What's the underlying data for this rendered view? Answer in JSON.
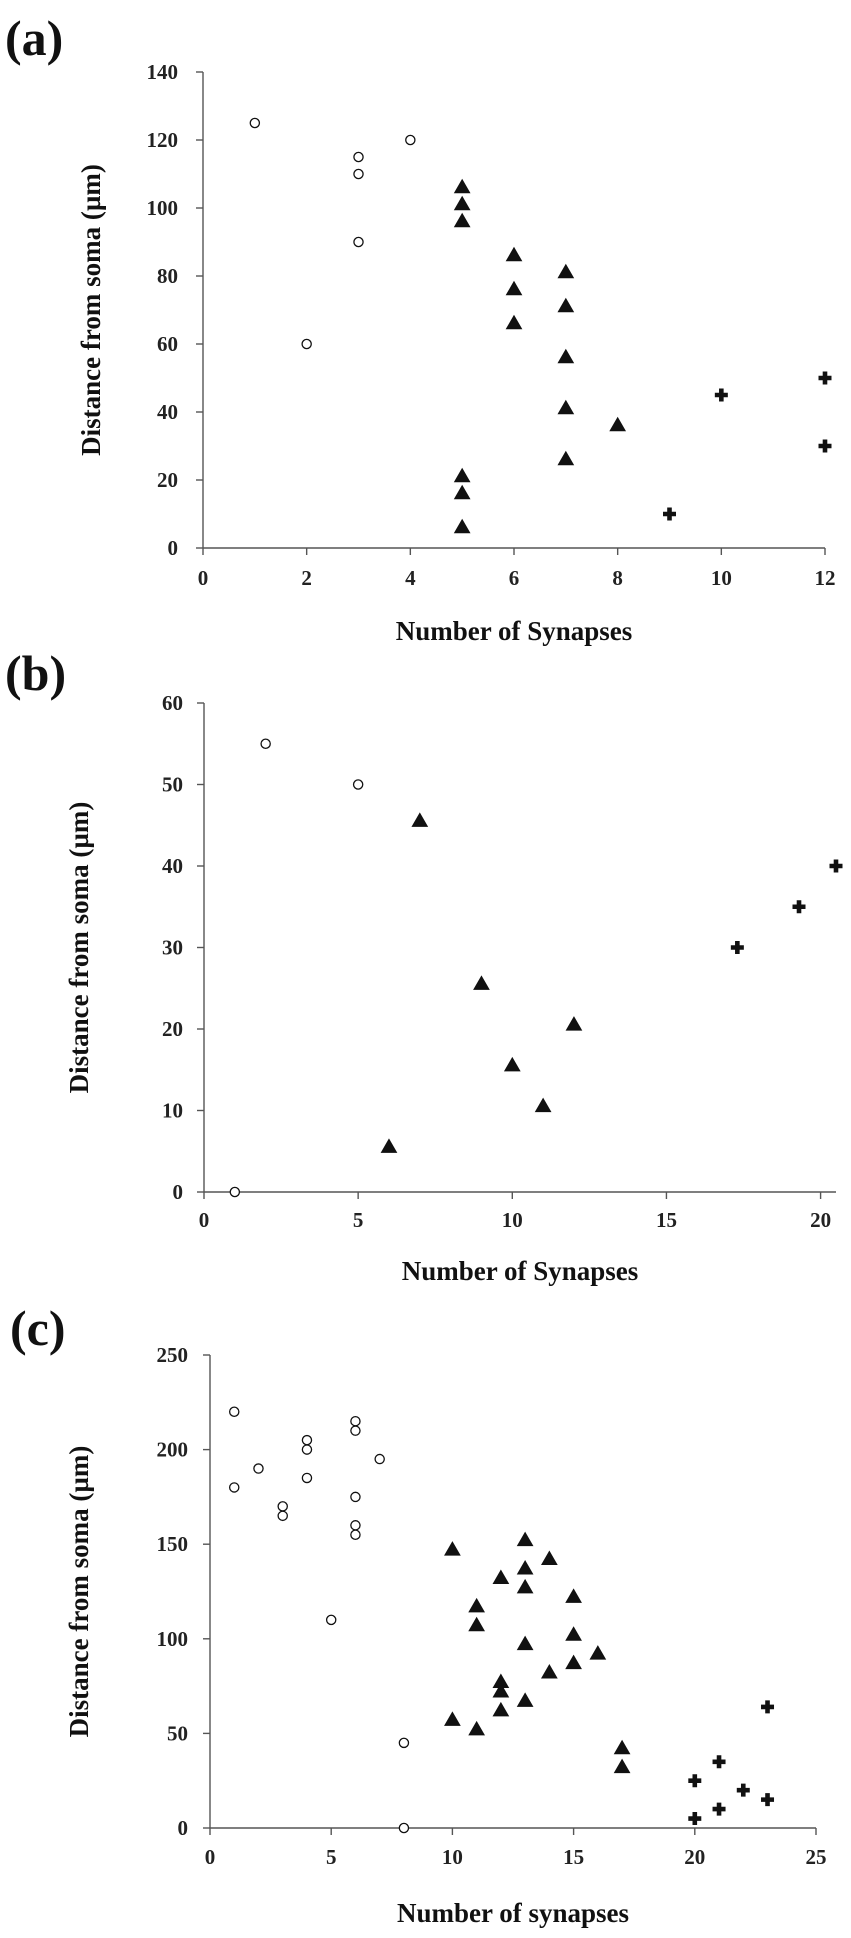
{
  "chart_data": [
    {
      "type": "scatter",
      "panel_label": "(a)",
      "xlabel": "Number of Synapses",
      "ylabel": "Distance from soma (µm)",
      "xlim": [
        0,
        12
      ],
      "ylim": [
        0,
        140
      ],
      "xticks": [
        0,
        2,
        4,
        6,
        8,
        10,
        12
      ],
      "yticks": [
        0,
        20,
        40,
        60,
        80,
        100,
        120,
        140
      ],
      "grid": false,
      "legend": "none",
      "series": [
        {
          "marker": "circle",
          "points": [
            [
              1,
              125
            ],
            [
              2,
              60
            ],
            [
              3,
              115
            ],
            [
              3,
              110
            ],
            [
              3,
              90
            ],
            [
              4,
              120
            ]
          ]
        },
        {
          "marker": "triangle",
          "points": [
            [
              5,
              106
            ],
            [
              5,
              101
            ],
            [
              5,
              96
            ],
            [
              5,
              21
            ],
            [
              5,
              16
            ],
            [
              5,
              6
            ],
            [
              6,
              86
            ],
            [
              6,
              76
            ],
            [
              6,
              66
            ],
            [
              7,
              81
            ],
            [
              7,
              71
            ],
            [
              7,
              56
            ],
            [
              7,
              41
            ],
            [
              7,
              26
            ],
            [
              8,
              36
            ]
          ]
        },
        {
          "marker": "plus",
          "points": [
            [
              9,
              10
            ],
            [
              10,
              45
            ],
            [
              12,
              50
            ],
            [
              12,
              30
            ]
          ]
        }
      ]
    },
    {
      "type": "scatter",
      "panel_label": "(b)",
      "xlabel": "Number of Synapses",
      "ylabel": "Distance from soma (µm)",
      "xlim": [
        0,
        20.5
      ],
      "ylim": [
        0,
        60
      ],
      "xticks": [
        0,
        5,
        10,
        15,
        20
      ],
      "yticks": [
        0,
        10,
        20,
        30,
        40,
        50,
        60
      ],
      "grid": false,
      "legend": "none",
      "series": [
        {
          "marker": "circle",
          "points": [
            [
              1,
              0
            ],
            [
              2,
              55
            ],
            [
              5,
              50
            ]
          ]
        },
        {
          "marker": "triangle",
          "points": [
            [
              6,
              5.5
            ],
            [
              7,
              45.5
            ],
            [
              9,
              25.5
            ],
            [
              10,
              15.5
            ],
            [
              11,
              10.5
            ],
            [
              12,
              20.5
            ]
          ]
        },
        {
          "marker": "plus",
          "points": [
            [
              17.3,
              30
            ],
            [
              19.3,
              35
            ],
            [
              20.5,
              40
            ]
          ]
        }
      ]
    },
    {
      "type": "scatter",
      "panel_label": "(c)",
      "xlabel": "Number of synapses",
      "ylabel": "Distance from soma (µm)",
      "xlim": [
        0,
        25
      ],
      "ylim": [
        0,
        250
      ],
      "xticks": [
        0,
        5,
        10,
        15,
        20,
        25
      ],
      "yticks": [
        0,
        50,
        100,
        150,
        200,
        250
      ],
      "grid": false,
      "legend": "none",
      "series": [
        {
          "marker": "circle",
          "points": [
            [
              1,
              220
            ],
            [
              1,
              180
            ],
            [
              2,
              190
            ],
            [
              3,
              170
            ],
            [
              3,
              165
            ],
            [
              4,
              205
            ],
            [
              4,
              200
            ],
            [
              4,
              185
            ],
            [
              5,
              110
            ],
            [
              6,
              215
            ],
            [
              6,
              210
            ],
            [
              6,
              175
            ],
            [
              6,
              160
            ],
            [
              6,
              155
            ],
            [
              7,
              195
            ],
            [
              8,
              45
            ],
            [
              8,
              0
            ]
          ]
        },
        {
          "marker": "triangle",
          "points": [
            [
              10,
              147
            ],
            [
              10,
              57
            ],
            [
              11,
              117
            ],
            [
              11,
              107
            ],
            [
              11,
              52
            ],
            [
              12,
              132
            ],
            [
              12,
              77
            ],
            [
              12,
              72
            ],
            [
              12,
              62
            ],
            [
              13,
              152
            ],
            [
              13,
              137
            ],
            [
              13,
              127
            ],
            [
              13,
              97
            ],
            [
              13,
              67
            ],
            [
              14,
              142
            ],
            [
              14,
              82
            ],
            [
              15,
              122
            ],
            [
              15,
              102
            ],
            [
              15,
              87
            ],
            [
              16,
              92
            ],
            [
              17,
              42
            ],
            [
              17,
              32
            ]
          ]
        },
        {
          "marker": "plus",
          "points": [
            [
              20,
              25
            ],
            [
              20,
              5
            ],
            [
              21,
              35
            ],
            [
              21,
              10
            ],
            [
              22,
              20
            ],
            [
              23,
              64
            ],
            [
              23,
              15
            ]
          ]
        }
      ]
    }
  ]
}
